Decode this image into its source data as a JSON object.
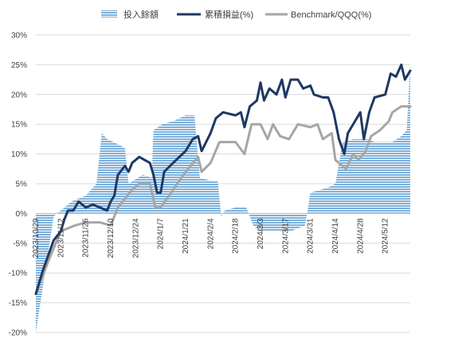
{
  "chart_data": {
    "type": "area+line",
    "legend": [
      "投入餘額",
      "累積損益(%)",
      "Benchmark/QQQ(%)"
    ],
    "legend_position": "top",
    "colors": {
      "area": "#7DB0DB",
      "cumulative": "#1F3864",
      "benchmark": "#A6A6A6",
      "grid": "#D9D9D9",
      "axis": "#BFBFBF"
    },
    "ylim": [
      -20,
      30
    ],
    "y_ticks": [
      "-20%",
      "-15%",
      "-10%",
      "-5%",
      "0%",
      "5%",
      "10%",
      "15%",
      "20%",
      "25%",
      "30%"
    ],
    "y_values": [
      -20,
      -15,
      -10,
      -5,
      0,
      5,
      10,
      15,
      20,
      25,
      30
    ],
    "x_range": [
      "2023/10/29",
      "2024/5/26"
    ],
    "x_ticks": [
      "2023/10/29",
      "2023/11/12",
      "2023/11/26",
      "2023/12/10",
      "2023/12/24",
      "2024/1/7",
      "2024/1/21",
      "2024/2/4",
      "2024/2/18",
      "2024/3/3",
      "2024/3/17",
      "2024/3/31",
      "2024/4/14",
      "2024/4/28",
      "2024/5/12"
    ],
    "series": [
      {
        "name": "投入餘額",
        "kind": "area",
        "points": [
          [
            "2023/10/29",
            -20
          ],
          [
            "2023/11/8",
            -0.5
          ],
          [
            "2023/11/18",
            2
          ],
          [
            "2023/11/26",
            3
          ],
          [
            "2023/12/2",
            5
          ],
          [
            "2023/12/5",
            13.5
          ],
          [
            "2023/12/8",
            12.5
          ],
          [
            "2023/12/15",
            11.5
          ],
          [
            "2023/12/18",
            11
          ],
          [
            "2023/12/20",
            5
          ],
          [
            "2023/12/28",
            6.5
          ],
          [
            "2024/1/2",
            6
          ],
          [
            "2024/1/3",
            14
          ],
          [
            "2024/1/8",
            15
          ],
          [
            "2024/1/14",
            15.5
          ],
          [
            "2024/1/21",
            16.5
          ],
          [
            "2024/1/26",
            16.5
          ],
          [
            "2024/1/29",
            6
          ],
          [
            "2024/2/4",
            5.5
          ],
          [
            "2024/2/8",
            5.5
          ],
          [
            "2024/2/10",
            -0.5
          ],
          [
            "2024/2/12",
            0.5
          ],
          [
            "2024/2/18",
            1
          ],
          [
            "2024/2/24",
            1
          ],
          [
            "2024/2/28",
            -2
          ],
          [
            "2024/3/3",
            -3
          ],
          [
            "2024/3/10",
            -3
          ],
          [
            "2024/3/20",
            -3
          ],
          [
            "2024/3/28",
            -2
          ],
          [
            "2024/3/31",
            3.5
          ],
          [
            "2024/4/6",
            4
          ],
          [
            "2024/4/11",
            4.5
          ],
          [
            "2024/4/14",
            5
          ],
          [
            "2024/4/18",
            12
          ],
          [
            "2024/4/24",
            12.5
          ],
          [
            "2024/4/28",
            12.5
          ],
          [
            "2024/5/2",
            12.5
          ],
          [
            "2024/5/6",
            12
          ],
          [
            "2024/5/12",
            12
          ],
          [
            "2024/5/16",
            12
          ],
          [
            "2024/5/21",
            13
          ],
          [
            "2024/5/24",
            14
          ],
          [
            "2024/5/26",
            25
          ]
        ]
      },
      {
        "name": "累積損益(%)",
        "kind": "line",
        "points": [
          [
            "2023/10/29",
            -13.5
          ],
          [
            "2023/11/2",
            -9.5
          ],
          [
            "2023/11/5",
            -7
          ],
          [
            "2023/11/8",
            -4.5
          ],
          [
            "2023/11/12",
            -3
          ],
          [
            "2023/11/14",
            -1
          ],
          [
            "2023/11/16",
            0.5
          ],
          [
            "2023/11/19",
            0.5
          ],
          [
            "2023/11/22",
            2
          ],
          [
            "2023/11/26",
            1
          ],
          [
            "2023/11/30",
            1.5
          ],
          [
            "2023/12/4",
            1
          ],
          [
            "2023/12/8",
            0.5
          ],
          [
            "2023/12/10",
            2
          ],
          [
            "2023/12/12",
            3
          ],
          [
            "2023/12/14",
            6.5
          ],
          [
            "2023/12/18",
            8
          ],
          [
            "2023/12/20",
            7
          ],
          [
            "2023/12/22",
            8.5
          ],
          [
            "2023/12/26",
            9.5
          ],
          [
            "2024/1/1",
            8.5
          ],
          [
            "2024/1/3",
            6.5
          ],
          [
            "2024/1/5",
            3.5
          ],
          [
            "2024/1/7",
            3.5
          ],
          [
            "2024/1/9",
            7
          ],
          [
            "2024/1/14",
            8.5
          ],
          [
            "2024/1/21",
            10.5
          ],
          [
            "2024/1/25",
            12.5
          ],
          [
            "2024/1/28",
            13
          ],
          [
            "2024/1/30",
            10.5
          ],
          [
            "2024/2/4",
            13.5
          ],
          [
            "2024/2/7",
            16
          ],
          [
            "2024/2/11",
            17
          ],
          [
            "2024/2/18",
            16.5
          ],
          [
            "2024/2/21",
            17
          ],
          [
            "2024/2/23",
            14.5
          ],
          [
            "2024/2/26",
            18
          ],
          [
            "2024/3/1",
            19
          ],
          [
            "2024/3/3",
            22
          ],
          [
            "2024/3/5",
            19
          ],
          [
            "2024/3/8",
            21
          ],
          [
            "2024/3/12",
            20
          ],
          [
            "2024/3/15",
            22.5
          ],
          [
            "2024/3/17",
            19.5
          ],
          [
            "2024/3/20",
            22.5
          ],
          [
            "2024/3/24",
            22.5
          ],
          [
            "2024/3/27",
            21
          ],
          [
            "2024/3/31",
            21.5
          ],
          [
            "2024/4/2",
            20
          ],
          [
            "2024/4/7",
            19.5
          ],
          [
            "2024/4/10",
            19.5
          ],
          [
            "2024/4/13",
            17
          ],
          [
            "2024/4/16",
            12.5
          ],
          [
            "2024/4/19",
            10
          ],
          [
            "2024/4/21",
            13.5
          ],
          [
            "2024/4/25",
            15.5
          ],
          [
            "2024/4/28",
            17
          ],
          [
            "2024/4/30",
            12.5
          ],
          [
            "2024/5/3",
            17
          ],
          [
            "2024/5/6",
            19.5
          ],
          [
            "2024/5/12",
            20
          ],
          [
            "2024/5/15",
            23.5
          ],
          [
            "2024/5/18",
            23
          ],
          [
            "2024/5/21",
            25
          ],
          [
            "2024/5/23",
            22.5
          ],
          [
            "2024/5/26",
            24
          ]
        ]
      },
      {
        "name": "Benchmark/QQQ(%)",
        "kind": "line",
        "points": [
          [
            "2023/10/29",
            -13.5
          ],
          [
            "2023/11/5",
            -8
          ],
          [
            "2023/11/12",
            -3
          ],
          [
            "2023/11/20",
            -2
          ],
          [
            "2023/11/26",
            -1.5
          ],
          [
            "2023/12/4",
            -1.5
          ],
          [
            "2023/12/10",
            -2
          ],
          [
            "2023/12/14",
            1
          ],
          [
            "2023/12/18",
            2.5
          ],
          [
            "2023/12/22",
            4
          ],
          [
            "2023/12/26",
            5
          ],
          [
            "2024/1/1",
            5
          ],
          [
            "2024/1/4",
            1
          ],
          [
            "2024/1/7",
            1
          ],
          [
            "2024/1/14",
            4
          ],
          [
            "2024/1/21",
            7
          ],
          [
            "2024/1/28",
            9.5
          ],
          [
            "2024/1/30",
            7
          ],
          [
            "2024/2/4",
            8.5
          ],
          [
            "2024/2/9",
            12
          ],
          [
            "2024/2/18",
            12
          ],
          [
            "2024/2/23",
            10
          ],
          [
            "2024/2/27",
            15
          ],
          [
            "2024/3/3",
            15
          ],
          [
            "2024/3/7",
            12.5
          ],
          [
            "2024/3/10",
            15
          ],
          [
            "2024/3/14",
            13
          ],
          [
            "2024/3/19",
            12.5
          ],
          [
            "2024/3/24",
            15
          ],
          [
            "2024/3/31",
            14.5
          ],
          [
            "2024/4/4",
            15
          ],
          [
            "2024/4/7",
            12.5
          ],
          [
            "2024/4/12",
            13.5
          ],
          [
            "2024/4/14",
            9
          ],
          [
            "2024/4/20",
            7.5
          ],
          [
            "2024/4/24",
            10
          ],
          [
            "2024/4/27",
            9
          ],
          [
            "2024/5/1",
            10.5
          ],
          [
            "2024/5/4",
            13
          ],
          [
            "2024/5/9",
            14
          ],
          [
            "2024/5/14",
            15.5
          ],
          [
            "2024/5/16",
            17
          ],
          [
            "2024/5/21",
            18
          ],
          [
            "2024/5/26",
            18
          ]
        ]
      }
    ]
  }
}
